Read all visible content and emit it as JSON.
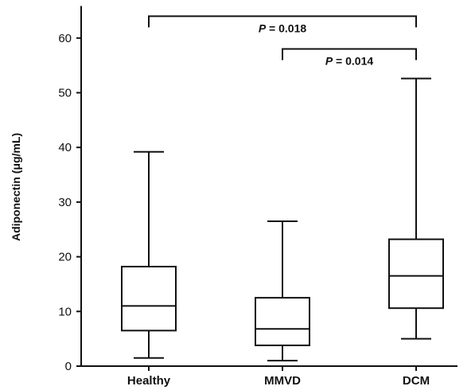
{
  "chart_data": {
    "type": "boxplot",
    "title": "",
    "xlabel": "",
    "ylabel": "Adiponectin (μg/mL)",
    "ylim": [
      0,
      65
    ],
    "yticks": [
      "0",
      "10",
      "20",
      "30",
      "40",
      "50",
      "60"
    ],
    "categories": [
      "Healthy",
      "MMVD",
      "DCM"
    ],
    "boxes": [
      {
        "name": "Healthy",
        "min": 1.5,
        "q1": 6.5,
        "median": 11,
        "q3": 18.2,
        "max": 39.2
      },
      {
        "name": "MMVD",
        "min": 1.0,
        "q1": 3.8,
        "median": 6.8,
        "q3": 12.5,
        "max": 26.5
      },
      {
        "name": "DCM",
        "min": 5.0,
        "q1": 10.6,
        "median": 16.5,
        "q3": 23.2,
        "max": 52.6
      }
    ],
    "annotations": [
      {
        "from": "Healthy",
        "to": "DCM",
        "p_prefix": "P",
        "p_value": "= 0.018",
        "y": 64
      },
      {
        "from": "MMVD",
        "to": "DCM",
        "p_prefix": "P",
        "p_value": "= 0.014",
        "y": 58
      }
    ]
  }
}
